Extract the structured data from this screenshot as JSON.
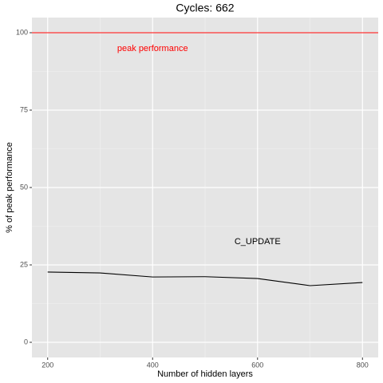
{
  "chart_data": {
    "type": "line",
    "title": "Cycles:  662",
    "x_label": "Number of hidden layers",
    "y_label": "% of peak performance",
    "x": [
      200,
      300,
      400,
      500,
      600,
      700,
      800
    ],
    "series": [
      {
        "name": "C_UPDATE",
        "color": "#000000",
        "values": [
          22.7,
          22.4,
          21.1,
          21.2,
          20.6,
          18.3,
          19.3
        ]
      }
    ],
    "hlines": [
      {
        "value": 100,
        "color": "#ff0000"
      }
    ],
    "annotations": [
      {
        "text": "peak performance",
        "x": 400,
        "y": 94.8,
        "color": "#ff0000"
      },
      {
        "text": "C_UPDATE",
        "x": 600,
        "y": 32.5,
        "color": "#000000"
      }
    ],
    "xlim": [
      170,
      830
    ],
    "ylim": [
      -4.9,
      104.9
    ],
    "xticks": [
      200,
      400,
      600,
      800
    ],
    "yticks": [
      0,
      25,
      50,
      75,
      100
    ],
    "x_minor_grid": [
      300,
      500,
      700
    ],
    "y_minor_grid": [
      12.5,
      37.5,
      62.5,
      87.5
    ],
    "grid": true
  }
}
